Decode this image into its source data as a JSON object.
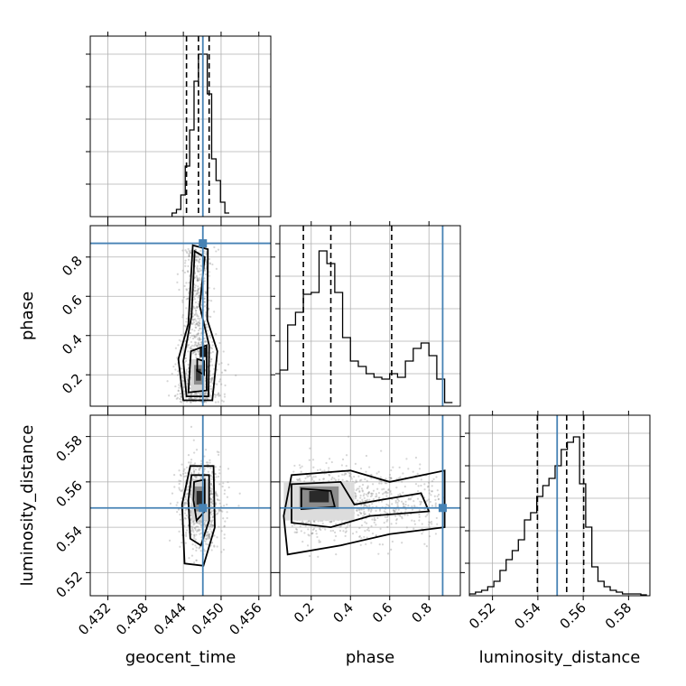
{
  "chart_data": {
    "type": "corner",
    "parameters": [
      "geocent_time",
      "phase",
      "luminosity_distance"
    ],
    "axis_labels": {
      "geocent_time": "geocent_time",
      "phase": "phase",
      "luminosity_distance": "luminosity_distance"
    },
    "ranges": {
      "geocent_time": [
        0.4292,
        0.4579
      ],
      "phase": [
        0.04,
        0.96
      ],
      "luminosity_distance": [
        0.5098,
        0.5894
      ]
    },
    "ticks": {
      "geocent_time": [
        0.432,
        0.438,
        0.444,
        0.45,
        0.456
      ],
      "phase": [
        0.2,
        0.4,
        0.6,
        0.8
      ],
      "luminosity_distance": [
        0.52,
        0.54,
        0.56,
        0.58
      ]
    },
    "tick_labels": {
      "geocent_time": [
        "0.432",
        "0.438",
        "0.444",
        "0.450",
        "0.456"
      ],
      "phase": [
        "0.2",
        "0.4",
        "0.6",
        "0.8"
      ],
      "luminosity_distance": [
        "0.52",
        "0.54",
        "0.56",
        "0.58"
      ]
    },
    "truths": {
      "geocent_time": 0.4471,
      "phase": 0.87,
      "luminosity_distance": 0.5485
    },
    "quantiles": {
      "geocent_time": [
        0.4445,
        0.4464,
        0.4481
      ],
      "phase": [
        0.16,
        0.3,
        0.61
      ],
      "luminosity_distance": [
        0.5398,
        0.5527,
        0.5602
      ]
    },
    "histograms": {
      "geocent_time": {
        "edges": [
          0.4422,
          0.4429,
          0.4436,
          0.4443,
          0.445,
          0.4457,
          0.4464,
          0.4471,
          0.4478,
          0.4485,
          0.4492,
          0.4499,
          0.4506,
          0.4513
        ],
        "counts": [
          0.02,
          0.04,
          0.12,
          0.28,
          0.48,
          0.75,
          0.9,
          0.9,
          0.68,
          0.32,
          0.2,
          0.08,
          0.02
        ]
      },
      "phase": {
        "edges": [
          0.04,
          0.08,
          0.12,
          0.16,
          0.2,
          0.24,
          0.28,
          0.32,
          0.36,
          0.4,
          0.44,
          0.48,
          0.52,
          0.56,
          0.6,
          0.64,
          0.68,
          0.72,
          0.76,
          0.8,
          0.84,
          0.88,
          0.92
        ],
        "counts": [
          0.2,
          0.45,
          0.52,
          0.62,
          0.63,
          0.86,
          0.79,
          0.63,
          0.38,
          0.25,
          0.22,
          0.18,
          0.16,
          0.15,
          0.18,
          0.16,
          0.25,
          0.32,
          0.35,
          0.28,
          0.15,
          0.02
        ]
      },
      "luminosity_distance": {
        "edges": [
          0.5098,
          0.5125,
          0.5152,
          0.5179,
          0.5206,
          0.5233,
          0.526,
          0.5287,
          0.5314,
          0.5341,
          0.5368,
          0.5395,
          0.5422,
          0.5449,
          0.5476,
          0.5503,
          0.553,
          0.5557,
          0.5584,
          0.5611,
          0.5638,
          0.5665,
          0.5692,
          0.5719,
          0.5746,
          0.5773,
          0.58,
          0.5827,
          0.5854,
          0.5881
        ],
        "counts": [
          0.01,
          0.02,
          0.03,
          0.05,
          0.08,
          0.14,
          0.2,
          0.25,
          0.31,
          0.42,
          0.46,
          0.55,
          0.61,
          0.65,
          0.72,
          0.81,
          0.85,
          0.88,
          0.62,
          0.38,
          0.16,
          0.08,
          0.05,
          0.03,
          0.02,
          0.01,
          0.01,
          0.01,
          0.005
        ]
      }
    },
    "hist_ylim": 1.0,
    "grid": true,
    "colors": {
      "truth": "#4682b4",
      "contour": "#000000",
      "samples": "#808080"
    }
  }
}
